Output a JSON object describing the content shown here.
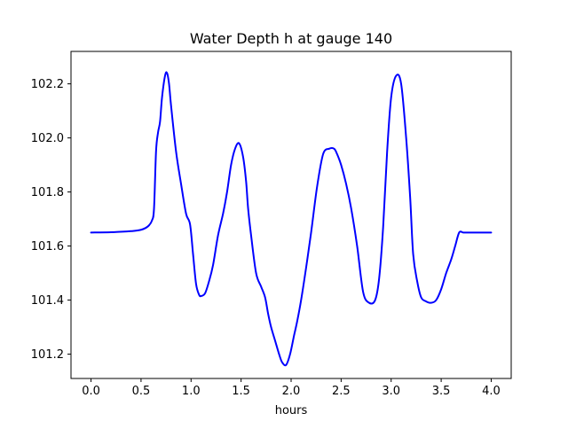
{
  "chart_data": {
    "type": "line",
    "title": "Water Depth h at gauge 140",
    "xlabel": "hours",
    "ylabel": "",
    "xlim": [
      -0.2,
      4.2
    ],
    "ylim": [
      101.11,
      102.32
    ],
    "xticks": [
      0.0,
      0.5,
      1.0,
      1.5,
      2.0,
      2.5,
      3.0,
      3.5,
      4.0
    ],
    "xtick_labels": [
      "0.0",
      "0.5",
      "1.0",
      "1.5",
      "2.0",
      "2.5",
      "3.0",
      "3.5",
      "4.0"
    ],
    "yticks": [
      101.2,
      101.4,
      101.6,
      101.8,
      102.0,
      102.2
    ],
    "ytick_labels": [
      "101.2",
      "101.4",
      "101.6",
      "101.8",
      "102.0",
      "102.2"
    ],
    "grid": false,
    "legend": "none",
    "series": [
      {
        "color": "#0000ff",
        "x": [
          0.0,
          0.2,
          0.4,
          0.5,
          0.57,
          0.61,
          0.63,
          0.65,
          0.67,
          0.69,
          0.71,
          0.74,
          0.76,
          0.78,
          0.8,
          0.85,
          0.9,
          0.95,
          0.99,
          1.02,
          1.05,
          1.08,
          1.1,
          1.14,
          1.18,
          1.22,
          1.27,
          1.32,
          1.36,
          1.4,
          1.44,
          1.48,
          1.52,
          1.55,
          1.57,
          1.6,
          1.65,
          1.7,
          1.74,
          1.77,
          1.8,
          1.84,
          1.88,
          1.91,
          1.95,
          1.99,
          2.03,
          2.06,
          2.1,
          2.15,
          2.2,
          2.26,
          2.32,
          2.38,
          2.43,
          2.46,
          2.5,
          2.55,
          2.6,
          2.66,
          2.72,
          2.78,
          2.84,
          2.88,
          2.92,
          2.96,
          3.0,
          3.05,
          3.1,
          3.15,
          3.19,
          3.22,
          3.26,
          3.3,
          3.35,
          3.4,
          3.45,
          3.5,
          3.55,
          3.6,
          3.64,
          3.68,
          3.72,
          3.76,
          3.8,
          3.85,
          3.9,
          3.95,
          4.0
        ],
        "y": [
          101.65,
          101.651,
          101.655,
          101.66,
          101.673,
          101.695,
          101.74,
          101.95,
          102.02,
          102.06,
          102.15,
          102.23,
          102.24,
          102.2,
          102.12,
          101.95,
          101.83,
          101.72,
          101.68,
          101.57,
          101.46,
          101.42,
          101.415,
          101.425,
          101.47,
          101.53,
          101.64,
          101.72,
          101.8,
          101.9,
          101.96,
          101.98,
          101.93,
          101.84,
          101.74,
          101.64,
          101.5,
          101.45,
          101.41,
          101.35,
          101.3,
          101.25,
          101.2,
          101.17,
          101.16,
          101.2,
          101.27,
          101.32,
          101.4,
          101.52,
          101.65,
          101.82,
          101.94,
          101.96,
          101.96,
          101.94,
          101.9,
          101.83,
          101.74,
          101.6,
          101.43,
          101.39,
          101.4,
          101.48,
          101.67,
          101.95,
          102.15,
          102.23,
          102.2,
          102.0,
          101.78,
          101.57,
          101.47,
          101.41,
          101.395,
          101.39,
          101.4,
          101.44,
          101.5,
          101.55,
          101.6,
          101.65,
          101.65,
          101.65,
          101.65,
          101.65,
          101.65,
          101.65,
          101.65
        ]
      }
    ]
  }
}
